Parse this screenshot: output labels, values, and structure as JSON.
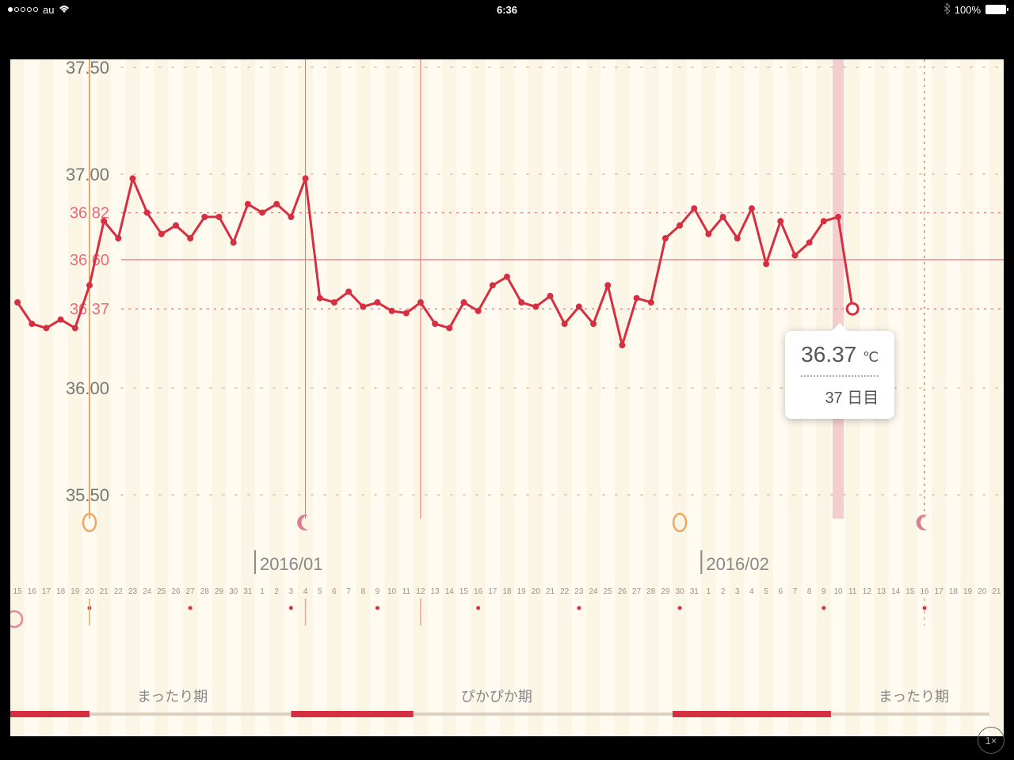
{
  "status_bar": {
    "carrier": "au",
    "time": "6:36",
    "battery_percent": "100%",
    "battery_fill_pct": 100,
    "signal_filled": 1,
    "signal_total": 5
  },
  "chart": {
    "type": "line",
    "background_color": "#fffbf0",
    "stripe_color": "#f8efdc",
    "grid_dot_color": "#e5d0b0",
    "line_color": "#d72f42",
    "marker_color": "#d72f42",
    "marker_radius": 4,
    "line_width": 3,
    "selected_marker_stroke": "#d72f42",
    "selected_marker_fill": "#ffffff",
    "selected_marker_radius": 7,
    "y_axis": {
      "min": 35.5,
      "max": 37.5,
      "major_ticks": [
        35.5,
        36.0,
        37.0,
        37.5
      ],
      "ref_lines": [
        {
          "value": 36.82,
          "color": "#e88a94",
          "style": "dotted"
        },
        {
          "value": 36.6,
          "color": "#e88a94",
          "style": "solid"
        },
        {
          "value": 36.37,
          "color": "#e88a94",
          "style": "dotted"
        }
      ],
      "label_color_major": "#777777",
      "label_color_ref": "#e76b78",
      "label_fontsize": 22
    },
    "x_axis": {
      "days": [
        "15",
        "16",
        "17",
        "18",
        "19",
        "20",
        "21",
        "22",
        "23",
        "24",
        "25",
        "26",
        "27",
        "28",
        "29",
        "30",
        "31",
        "1",
        "2",
        "3",
        "4",
        "5",
        "6",
        "7",
        "8",
        "9",
        "10",
        "11",
        "12",
        "13",
        "14",
        "15",
        "16",
        "17",
        "18",
        "19",
        "20",
        "21",
        "22",
        "23",
        "24",
        "25",
        "26",
        "27",
        "28",
        "29",
        "30",
        "31",
        "1",
        "2",
        "3",
        "4",
        "5",
        "6",
        "7",
        "8",
        "9",
        "10",
        "11",
        "12",
        "13",
        "14",
        "15",
        "16",
        "17",
        "18",
        "19",
        "20",
        "21"
      ],
      "month_markers": [
        {
          "index": 17,
          "label": "2016/01"
        },
        {
          "index": 48,
          "label": "2016/02"
        }
      ],
      "day_label_fontsize": 10,
      "day_label_color": "#a09080",
      "month_label_fontsize": 22,
      "month_label_color": "#888888"
    },
    "vertical_markers": [
      {
        "index": 5,
        "color": "#f0a860",
        "style": "solid",
        "width": 2
      },
      {
        "index": 20,
        "color": "#e76b78",
        "style": "solid",
        "width": 1
      },
      {
        "index": 28,
        "color": "#e76b78",
        "style": "solid",
        "width": 1
      },
      {
        "index": 57,
        "color": "#e9a0aa",
        "style": "band",
        "width": 14
      },
      {
        "index": 63,
        "color": "#f0a860",
        "style": "dotted",
        "width": 2
      }
    ],
    "event_icons": [
      {
        "index": 5,
        "type": "egg",
        "color": "#f0a860"
      },
      {
        "index": 20,
        "type": "moon",
        "color": "#d98090"
      },
      {
        "index": 46,
        "type": "egg",
        "color": "#f0a860"
      },
      {
        "index": 63,
        "type": "moon",
        "color": "#d98090"
      }
    ],
    "red_dots_row": [
      5,
      12,
      19,
      25,
      32,
      39,
      46,
      56,
      63
    ],
    "data": [
      36.4,
      36.3,
      36.28,
      36.32,
      36.28,
      36.48,
      36.78,
      36.7,
      36.98,
      36.82,
      36.72,
      36.76,
      36.7,
      36.8,
      36.8,
      36.68,
      36.86,
      36.82,
      36.86,
      36.8,
      36.98,
      36.42,
      36.4,
      36.45,
      36.38,
      36.4,
      36.36,
      36.35,
      36.4,
      36.3,
      36.28,
      36.4,
      36.36,
      36.48,
      36.52,
      36.4,
      36.38,
      36.43,
      36.3,
      36.38,
      36.3,
      36.48,
      36.2,
      36.42,
      36.4,
      36.7,
      36.76,
      36.84,
      36.72,
      36.8,
      36.7,
      36.84,
      36.58,
      36.78,
      36.62,
      36.68,
      36.78,
      36.8,
      36.37
    ],
    "selected_index": 58,
    "tooltip": {
      "temp": "36.37",
      "unit": "℃",
      "day": "37 日目"
    },
    "phases": [
      {
        "start": 0,
        "end": 5.5,
        "color": "#d72f42",
        "thick": true
      },
      {
        "start": 5.5,
        "end": 19.5,
        "label": "まったり期",
        "color": "#dcd0c0",
        "thick": false
      },
      {
        "start": 19.5,
        "end": 28,
        "color": "#d72f42",
        "thick": true
      },
      {
        "start": 28,
        "end": 46,
        "label": "ぴかぴか期",
        "color": "#dcd0c0",
        "thick": false
      },
      {
        "start": 46,
        "end": 57,
        "color": "#d72f42",
        "thick": true
      },
      {
        "start": 57,
        "end": 68,
        "label": "まったり期",
        "color": "#dcd0c0",
        "thick": false
      }
    ],
    "phase_label_color": "#888888",
    "phase_label_fontsize": 18
  },
  "zoom_badge": "1×"
}
